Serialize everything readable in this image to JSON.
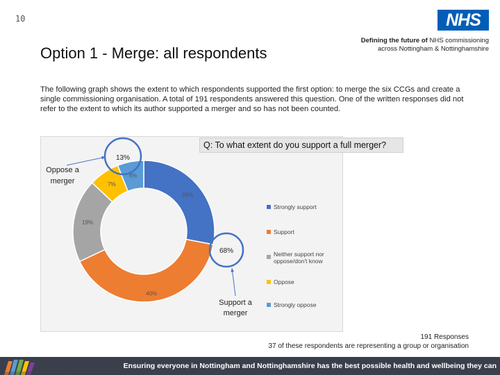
{
  "page_number": "10",
  "logo_text": "NHS",
  "header": {
    "title": "Option 1 - Merge: all respondents",
    "subtitle_bold": "Defining the future of",
    "subtitle_rest": "NHS commissioning across Nottingham & Nottinghamshire"
  },
  "intro_text": "The following graph shows the extent to which respondents supported the first option: to merge the six CCGs and create a single commissioning organisation. A total of 191 respondents answered this question. One of the written responses did not refer to the extent to which its author supported a merger and so has not been counted.",
  "chart_data": {
    "type": "pie",
    "title": "Q: To what extent do you support a full merger?",
    "categories": [
      "Strongly support",
      "Support",
      "Neither support nor oppose/don't know",
      "Oppose",
      "Strongly oppose"
    ],
    "values": [
      28,
      40,
      19,
      7,
      6
    ],
    "value_labels": [
      "28%",
      "40%",
      "19%",
      "7%",
      "6%"
    ],
    "colors": [
      "#4472c4",
      "#ed7d31",
      "#a5a5a5",
      "#ffc000",
      "#5b9bd5"
    ],
    "legend_placement": "right",
    "donut": true,
    "annotations": {
      "support_total": "68%",
      "support_label": "Support a merger",
      "oppose_total": "13%",
      "oppose_label": "Oppose a merger"
    }
  },
  "footer": {
    "responses": "191 Responses",
    "note": "37 of these respondents are representing a group or organisation",
    "banner": "Ensuring everyone in Nottingham and Nottinghamshire has the best possible health and wellbeing they can"
  }
}
